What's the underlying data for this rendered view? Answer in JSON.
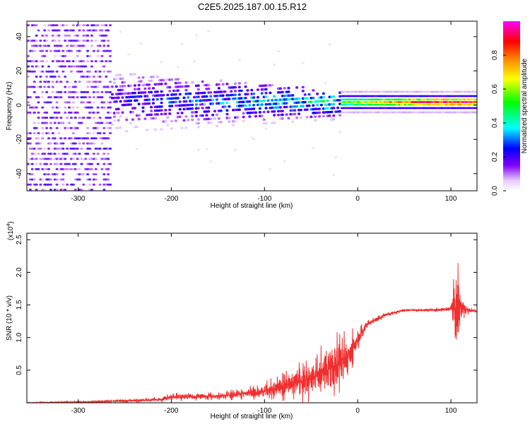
{
  "title": "C2E5.2025.187.00.15.R12",
  "chart_data": [
    {
      "type": "heatmap",
      "xlabel": "Height of straight line (km)",
      "ylabel": "Frequency (Hz)",
      "xlim": [
        -355,
        128
      ],
      "ylim": [
        -50,
        49
      ],
      "xticks": [
        -300,
        -200,
        -100,
        0,
        100
      ],
      "yticks": [
        -40,
        -20,
        0,
        20,
        40
      ],
      "colorbar": {
        "label": "Normalized spectral amplitude",
        "range": [
          0,
          1
        ],
        "ticks": [
          0.0,
          0.2,
          0.4,
          0.6,
          0.8
        ],
        "colors": [
          "#f2e6ff",
          "#d9a6ff",
          "#8000ff",
          "#0000ff",
          "#00ffff",
          "#00ff00",
          "#ffff00",
          "#ff8000",
          "#ff0000",
          "#ff00ff"
        ]
      },
      "features": [
        {
          "region": [
            -355,
            -265
          ],
          "description": "diffuse purple noise across all frequencies",
          "amplitude": 0.15
        },
        {
          "region": [
            -265,
            -20
          ],
          "center_freq": 3,
          "spread_hz": [
            12,
            6
          ],
          "amplitude": [
            0.2,
            0.45
          ]
        },
        {
          "region": [
            -20,
            128
          ],
          "center_freq": 1.5,
          "spread_hz": 2,
          "amplitude": [
            0.55,
            0.9
          ]
        }
      ]
    },
    {
      "type": "line",
      "xlabel": "Height of straight line (km)",
      "ylabel": "SNR (10 * v/v)",
      "yscale_label": "(x10",
      "yscale_exp": "4",
      "xlim": [
        -355,
        128
      ],
      "ylim": [
        0,
        2.6
      ],
      "xticks": [
        -300,
        -200,
        -100,
        0,
        100
      ],
      "yticks": [
        0.5,
        1.0,
        1.5,
        2.0,
        2.5
      ],
      "color": "#f03030",
      "envelope": {
        "x": [
          -355,
          -300,
          -250,
          -210,
          -200,
          -150,
          -100,
          -80,
          -60,
          -40,
          -20,
          -5,
          10,
          30,
          50,
          80,
          100,
          104,
          106,
          108,
          112,
          120,
          128
        ],
        "y": [
          0.0,
          0.01,
          0.03,
          0.05,
          0.09,
          0.1,
          0.18,
          0.25,
          0.33,
          0.45,
          0.6,
          0.85,
          1.2,
          1.35,
          1.42,
          1.42,
          1.44,
          1.5,
          1.4,
          1.6,
          1.45,
          1.42,
          1.4
        ],
        "amp": [
          0.01,
          0.015,
          0.02,
          0.04,
          0.06,
          0.05,
          0.12,
          0.2,
          0.3,
          0.38,
          0.45,
          0.25,
          0.06,
          0.03,
          0.02,
          0.02,
          0.05,
          0.6,
          0.95,
          0.8,
          0.15,
          0.04,
          0.02
        ]
      }
    }
  ]
}
